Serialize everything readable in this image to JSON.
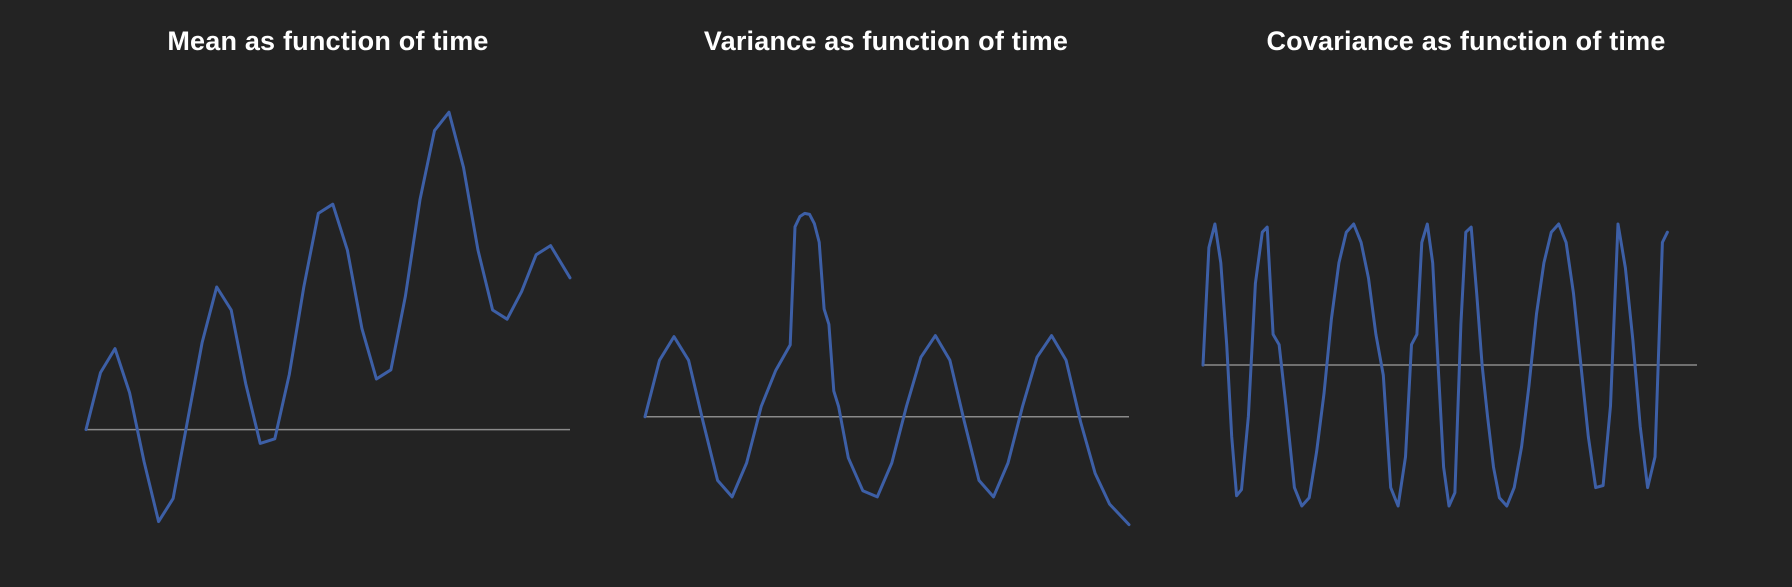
{
  "colors": {
    "background": "#232323",
    "line": "#3d5fa6",
    "baseline": "#8a8a8a",
    "title": "#ffffff"
  },
  "chart_data": [
    {
      "type": "line",
      "title": "Mean as function of time",
      "grid": false,
      "axes_visible": false,
      "baseline": 0,
      "xlim": [
        0,
        100
      ],
      "ylim": [
        -1.2,
        3.8
      ],
      "x": [
        0,
        3,
        6,
        9,
        12,
        15,
        18,
        21,
        24,
        27,
        30,
        33,
        36,
        39,
        42,
        45,
        48,
        51,
        54,
        57,
        60,
        63,
        66,
        69,
        72,
        75,
        78,
        81,
        84,
        87,
        90,
        93,
        96,
        100
      ],
      "series": [
        {
          "values": [
            0.0,
            0.62,
            0.88,
            0.4,
            -0.35,
            -1.0,
            -0.75,
            0.1,
            0.95,
            1.55,
            1.3,
            0.5,
            -0.15,
            -0.1,
            0.6,
            1.55,
            2.35,
            2.45,
            1.95,
            1.1,
            0.55,
            0.65,
            1.45,
            2.5,
            3.25,
            3.45,
            2.85,
            1.95,
            1.3,
            1.2,
            1.5,
            1.9,
            2.0,
            1.65
          ]
        }
      ]
    },
    {
      "type": "line",
      "title": "Variance as function of time",
      "grid": false,
      "axes_visible": false,
      "baseline": 0,
      "xlim": [
        0,
        100
      ],
      "ylim": [
        -1.2,
        2.5
      ],
      "x": [
        0,
        3,
        6,
        9,
        12,
        15,
        18,
        21,
        24,
        27,
        30,
        31,
        32,
        33,
        34,
        35,
        36,
        37,
        38,
        39,
        40,
        42,
        45,
        48,
        51,
        54,
        57,
        60,
        63,
        66,
        69,
        72,
        75,
        78,
        81,
        84,
        87,
        90,
        93,
        96,
        100
      ],
      "series": [
        {
          "values": [
            0.0,
            0.55,
            0.78,
            0.55,
            -0.05,
            -0.62,
            -0.78,
            -0.45,
            0.1,
            0.45,
            0.7,
            1.85,
            1.95,
            1.98,
            1.97,
            1.88,
            1.7,
            1.05,
            0.9,
            0.25,
            0.1,
            -0.4,
            -0.72,
            -0.78,
            -0.45,
            0.1,
            0.58,
            0.79,
            0.55,
            -0.05,
            -0.62,
            -0.78,
            -0.45,
            0.1,
            0.58,
            0.79,
            0.55,
            -0.05,
            -0.55,
            -0.85,
            -1.05
          ]
        }
      ]
    },
    {
      "type": "line",
      "title": "Covariance as function of time",
      "grid": false,
      "axes_visible": false,
      "baseline": 0,
      "xlim": [
        0,
        100
      ],
      "ylim": [
        -1.4,
        1.4
      ],
      "x": [
        0,
        1.2,
        2.4,
        3.6,
        4.8,
        5.8,
        6.8,
        7.8,
        9.2,
        10.6,
        12,
        13,
        14.2,
        15.4,
        16.8,
        18.5,
        20,
        21.5,
        23,
        24.5,
        26,
        27.5,
        29,
        30.5,
        32,
        33.5,
        35,
        36.5,
        38,
        39.5,
        41,
        42.2,
        43.3,
        44.3,
        45.4,
        46.5,
        47.6,
        48.7,
        49.8,
        51,
        52.2,
        53.2,
        54.3,
        55.4,
        56.5,
        57.6,
        58.8,
        60,
        61.5,
        63,
        64.5,
        66,
        67.5,
        69,
        70.5,
        72,
        73.5,
        75,
        76.5,
        78,
        79.5,
        81,
        82.5,
        84,
        85.5,
        87,
        88.5,
        90,
        91.5,
        93,
        94
      ],
      "series": [
        {
          "values": [
            0.0,
            1.15,
            1.38,
            1.0,
            0.2,
            -0.7,
            -1.28,
            -1.22,
            -0.5,
            0.8,
            1.3,
            1.35,
            0.3,
            0.2,
            -0.4,
            -1.2,
            -1.38,
            -1.3,
            -0.85,
            -0.28,
            0.45,
            1.0,
            1.3,
            1.38,
            1.2,
            0.85,
            0.3,
            -0.1,
            -1.2,
            -1.38,
            -0.9,
            0.2,
            0.3,
            1.2,
            1.38,
            1.0,
            0.0,
            -1.0,
            -1.38,
            -1.25,
            0.4,
            1.3,
            1.35,
            0.7,
            0.0,
            -0.5,
            -1.0,
            -1.3,
            -1.38,
            -1.2,
            -0.8,
            -0.2,
            0.5,
            1.0,
            1.3,
            1.38,
            1.2,
            0.7,
            0.0,
            -0.7,
            -1.2,
            -1.18,
            -0.4,
            1.38,
            0.95,
            0.25,
            -0.6,
            -1.2,
            -0.9,
            1.2,
            1.3
          ]
        }
      ]
    }
  ]
}
